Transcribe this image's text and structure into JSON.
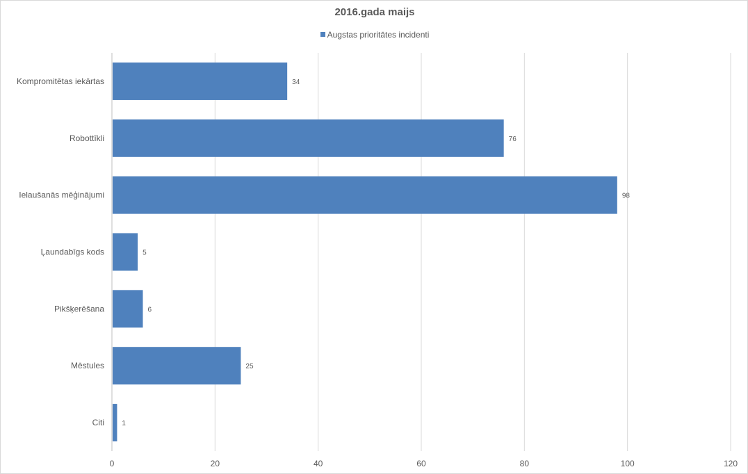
{
  "chart_data": {
    "type": "bar",
    "orientation": "horizontal",
    "title": "2016.gada maijs",
    "categories": [
      "Kompromitētas iekārtas",
      "Robottīkli",
      "Ielaušanās mēģinājumi",
      "Ļaundabīgs kods",
      "Pikšķerēšana",
      "Mēstules",
      "Citi"
    ],
    "series": [
      {
        "name": "Augstas prioritātes incidenti",
        "values": [
          34,
          76,
          98,
          5,
          6,
          25,
          1
        ],
        "color": "#4f81bd"
      }
    ],
    "xlim": [
      0,
      120
    ],
    "xticks": [
      "0",
      "20",
      "40",
      "60",
      "80",
      "100",
      "120"
    ],
    "data_labels": true,
    "grid": true,
    "legend_position": "top"
  }
}
